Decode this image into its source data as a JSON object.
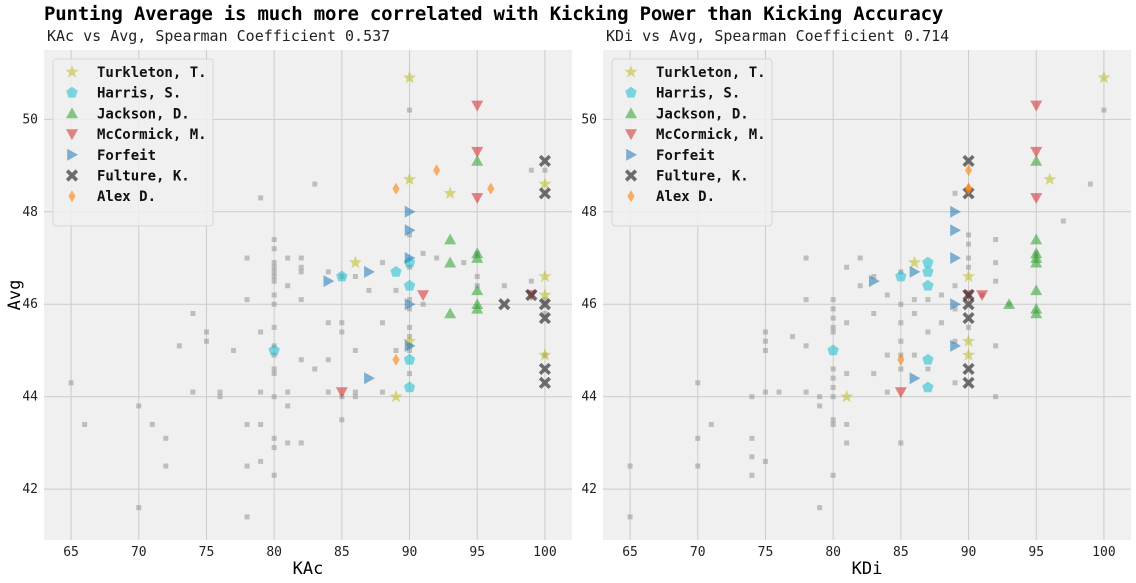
{
  "title": "Punting Average is much more correlated with Kicking Power than Kicking Accuracy",
  "chart_data": [
    {
      "type": "scatter",
      "subtitle": "KAc vs Avg, Spearman Coefficient 0.537",
      "xlabel": "KAc",
      "ylabel": "Avg",
      "xlim": [
        63,
        102
      ],
      "ylim": [
        40.9,
        51.5
      ],
      "xticks": [
        "65",
        "70",
        "75",
        "80",
        "85",
        "90",
        "95",
        "100"
      ],
      "yticks": [
        "42",
        "44",
        "46",
        "48",
        "50"
      ],
      "grid": true,
      "legend_position": "top-left",
      "background": [
        [
          65,
          44.3
        ],
        [
          66,
          43.4
        ],
        [
          70,
          43.8
        ],
        [
          70,
          41.6
        ],
        [
          71,
          43.4
        ],
        [
          72,
          43.1
        ],
        [
          72,
          42.5
        ],
        [
          73,
          45.1
        ],
        [
          74,
          44.1
        ],
        [
          74,
          45.8
        ],
        [
          75,
          45.2
        ],
        [
          75,
          45.4
        ],
        [
          76,
          44.1
        ],
        [
          76,
          44.0
        ],
        [
          77,
          45.0
        ],
        [
          78,
          41.4
        ],
        [
          78,
          42.5
        ],
        [
          78,
          43.4
        ],
        [
          78,
          46.1
        ],
        [
          78,
          47.0
        ],
        [
          79,
          48.3
        ],
        [
          79,
          45.4
        ],
        [
          79,
          44.1
        ],
        [
          79,
          43.4
        ],
        [
          79,
          42.6
        ],
        [
          80,
          47.4
        ],
        [
          80,
          47.2
        ],
        [
          80,
          46.9
        ],
        [
          80,
          46.8
        ],
        [
          80,
          46.7
        ],
        [
          80,
          46.6
        ],
        [
          80,
          46.5
        ],
        [
          80,
          46.2
        ],
        [
          80,
          46.0
        ],
        [
          80,
          45.5
        ],
        [
          80,
          45.1
        ],
        [
          80,
          44.9
        ],
        [
          80,
          44.6
        ],
        [
          80,
          44.5
        ],
        [
          80,
          44.0
        ],
        [
          80,
          43.1
        ],
        [
          80,
          42.9
        ],
        [
          80,
          42.3
        ],
        [
          81,
          47.0
        ],
        [
          81,
          46.4
        ],
        [
          81,
          44.1
        ],
        [
          81,
          43.8
        ],
        [
          81,
          43.0
        ],
        [
          82,
          46.8
        ],
        [
          82,
          46.7
        ],
        [
          82,
          47.0
        ],
        [
          82,
          46.1
        ],
        [
          82,
          44.8
        ],
        [
          82,
          43.0
        ],
        [
          83,
          48.6
        ],
        [
          83,
          44.6
        ],
        [
          84,
          46.7
        ],
        [
          84,
          45.6
        ],
        [
          84,
          44.8
        ],
        [
          84,
          44.1
        ],
        [
          85,
          46.6
        ],
        [
          85,
          45.6
        ],
        [
          85,
          45.4
        ],
        [
          85,
          44.0
        ],
        [
          85,
          43.5
        ],
        [
          86,
          46.6
        ],
        [
          86,
          45.0
        ],
        [
          86,
          44.1
        ],
        [
          86,
          44.0
        ],
        [
          87,
          46.3
        ],
        [
          88,
          46.9
        ],
        [
          88,
          45.6
        ],
        [
          88,
          44.1
        ],
        [
          89,
          46.3
        ],
        [
          89,
          45.0
        ],
        [
          90,
          50.2
        ],
        [
          90,
          47.5
        ],
        [
          90,
          46.8
        ],
        [
          90,
          46.1
        ],
        [
          90,
          45.9
        ],
        [
          90,
          45.5
        ],
        [
          90,
          45.3
        ],
        [
          90,
          45.1
        ],
        [
          90,
          45.0
        ],
        [
          90,
          44.5
        ],
        [
          91,
          47.1
        ],
        [
          91,
          46.0
        ],
        [
          92,
          47.0
        ],
        [
          94,
          46.9
        ],
        [
          95,
          47.1
        ],
        [
          95,
          46.6
        ],
        [
          95,
          46.4
        ],
        [
          97,
          46.4
        ],
        [
          99,
          48.9
        ],
        [
          99,
          46.5
        ],
        [
          100,
          48.9
        ],
        [
          100,
          46.1
        ],
        [
          100,
          45.8
        ],
        [
          100,
          44.9
        ]
      ],
      "series": [
        {
          "name": "Turkleton, T.",
          "marker": "star",
          "color": "#bcbd22",
          "points": [
            [
              90,
              50.9
            ],
            [
              90,
              48.7
            ],
            [
              86,
              46.9
            ],
            [
              93,
              48.4
            ],
            [
              90,
              45.2
            ],
            [
              89,
              44.0
            ],
            [
              100,
              48.6
            ],
            [
              100,
              46.6
            ],
            [
              100,
              46.2
            ],
            [
              100,
              44.9
            ]
          ]
        },
        {
          "name": "Harris, S.",
          "marker": "pentagon",
          "color": "#17becf",
          "points": [
            [
              90,
              46.9
            ],
            [
              89,
              46.7
            ],
            [
              85,
              46.6
            ],
            [
              90,
              46.4
            ],
            [
              80,
              45.0
            ],
            [
              90,
              44.8
            ],
            [
              90,
              44.2
            ]
          ]
        },
        {
          "name": "Jackson, D.",
          "marker": "triangle-up",
          "color": "#2ca02c",
          "points": [
            [
              95,
              49.1
            ],
            [
              93,
              47.4
            ],
            [
              95,
              47.1
            ],
            [
              95,
              47.0
            ],
            [
              93,
              46.9
            ],
            [
              95,
              46.3
            ],
            [
              95,
              46.0
            ],
            [
              95,
              45.9
            ],
            [
              93,
              45.8
            ]
          ]
        },
        {
          "name": "McCormick, M.",
          "marker": "triangle-down",
          "color": "#d62728",
          "points": [
            [
              95,
              50.3
            ],
            [
              95,
              49.3
            ],
            [
              95,
              48.3
            ],
            [
              91,
              46.2
            ],
            [
              99,
              46.2
            ],
            [
              85,
              44.1
            ]
          ]
        },
        {
          "name": "Forfeit",
          "marker": "triangle-right",
          "color": "#1f77b4",
          "points": [
            [
              90,
              48.0
            ],
            [
              90,
              47.6
            ],
            [
              90,
              47.0
            ],
            [
              87,
              46.7
            ],
            [
              84,
              46.5
            ],
            [
              90,
              46.0
            ],
            [
              90,
              45.1
            ],
            [
              87,
              44.4
            ]
          ]
        },
        {
          "name": "Fulture, K.",
          "marker": "x",
          "color": "#333333",
          "points": [
            [
              100,
              49.1
            ],
            [
              100,
              48.4
            ],
            [
              99,
              46.2
            ],
            [
              97,
              46.0
            ],
            [
              100,
              46.0
            ],
            [
              100,
              45.7
            ],
            [
              100,
              44.6
            ],
            [
              100,
              44.3
            ]
          ]
        },
        {
          "name": "Alex D.",
          "marker": "diamond",
          "color": "#ff7f0e",
          "points": [
            [
              92,
              48.9
            ],
            [
              96,
              48.5
            ],
            [
              89,
              48.5
            ],
            [
              89,
              44.8
            ]
          ]
        }
      ]
    },
    {
      "type": "scatter",
      "subtitle": "KDi vs Avg, Spearman Coefficient 0.714",
      "xlabel": "KDi",
      "ylabel": "",
      "xlim": [
        63,
        102
      ],
      "ylim": [
        40.9,
        51.5
      ],
      "xticks": [
        "65",
        "70",
        "75",
        "80",
        "85",
        "90",
        "95",
        "100"
      ],
      "yticks": [
        "42",
        "44",
        "46",
        "48",
        "50"
      ],
      "grid": true,
      "legend_position": "top-left",
      "background": [
        [
          65,
          42.5
        ],
        [
          65,
          41.4
        ],
        [
          70,
          44.3
        ],
        [
          70,
          43.1
        ],
        [
          70,
          42.5
        ],
        [
          71,
          43.4
        ],
        [
          74,
          44.0
        ],
        [
          74,
          43.1
        ],
        [
          74,
          42.7
        ],
        [
          74,
          42.3
        ],
        [
          75,
          45.4
        ],
        [
          75,
          45.2
        ],
        [
          75,
          45.0
        ],
        [
          75,
          44.1
        ],
        [
          75,
          42.6
        ],
        [
          76,
          44.1
        ],
        [
          77,
          45.3
        ],
        [
          78,
          47.0
        ],
        [
          78,
          46.1
        ],
        [
          78,
          45.1
        ],
        [
          78,
          44.1
        ],
        [
          79,
          41.6
        ],
        [
          79,
          43.8
        ],
        [
          79,
          44.0
        ],
        [
          80,
          46.1
        ],
        [
          80,
          45.9
        ],
        [
          80,
          45.7
        ],
        [
          80,
          45.5
        ],
        [
          80,
          45.4
        ],
        [
          80,
          44.6
        ],
        [
          80,
          44.4
        ],
        [
          80,
          44.2
        ],
        [
          80,
          44.0
        ],
        [
          80,
          43.5
        ],
        [
          80,
          43.4
        ],
        [
          80,
          42.3
        ],
        [
          81,
          46.8
        ],
        [
          81,
          45.6
        ],
        [
          81,
          44.5
        ],
        [
          81,
          43.4
        ],
        [
          81,
          43.0
        ],
        [
          82,
          47.0
        ],
        [
          82,
          46.4
        ],
        [
          83,
          46.6
        ],
        [
          83,
          45.8
        ],
        [
          83,
          44.5
        ],
        [
          84,
          46.2
        ],
        [
          84,
          44.9
        ],
        [
          84,
          44.1
        ],
        [
          85,
          46.7
        ],
        [
          85,
          46.0
        ],
        [
          85,
          45.6
        ],
        [
          85,
          45.2
        ],
        [
          85,
          44.9
        ],
        [
          85,
          44.6
        ],
        [
          85,
          43.0
        ],
        [
          86,
          46.1
        ],
        [
          86,
          45.8
        ],
        [
          86,
          44.9
        ],
        [
          87,
          46.1
        ],
        [
          87,
          45.4
        ],
        [
          87,
          44.6
        ],
        [
          88,
          45.6
        ],
        [
          88,
          46.2
        ],
        [
          89,
          48.4
        ],
        [
          89,
          46.4
        ],
        [
          89,
          45.9
        ],
        [
          89,
          45.2
        ],
        [
          89,
          44.3
        ],
        [
          90,
          47.5
        ],
        [
          90,
          47.3
        ],
        [
          90,
          47.0
        ],
        [
          90,
          46.8
        ],
        [
          90,
          46.2
        ],
        [
          90,
          45.5
        ],
        [
          91,
          46.2
        ],
        [
          92,
          47.4
        ],
        [
          92,
          46.9
        ],
        [
          92,
          46.5
        ],
        [
          92,
          45.1
        ],
        [
          92,
          44.0
        ],
        [
          93,
          46.0
        ],
        [
          95,
          47.1
        ],
        [
          97,
          47.8
        ],
        [
          99,
          48.6
        ],
        [
          100,
          50.2
        ]
      ],
      "series": [
        {
          "name": "Turkleton, T.",
          "marker": "star",
          "color": "#bcbd22",
          "points": [
            [
              100,
              50.9
            ],
            [
              96,
              48.7
            ],
            [
              86,
              46.9
            ],
            [
              90,
              46.6
            ],
            [
              90,
              45.2
            ],
            [
              90,
              44.9
            ],
            [
              81,
              44.0
            ]
          ]
        },
        {
          "name": "Harris, S.",
          "marker": "pentagon",
          "color": "#17becf",
          "points": [
            [
              87,
              46.9
            ],
            [
              87,
              46.7
            ],
            [
              85,
              46.6
            ],
            [
              87,
              46.4
            ],
            [
              80,
              45.0
            ],
            [
              87,
              44.8
            ],
            [
              87,
              44.2
            ]
          ]
        },
        {
          "name": "Jackson, D.",
          "marker": "triangle-up",
          "color": "#2ca02c",
          "points": [
            [
              95,
              49.1
            ],
            [
              95,
              47.4
            ],
            [
              95,
              47.1
            ],
            [
              95,
              47.0
            ],
            [
              95,
              46.9
            ],
            [
              95,
              46.3
            ],
            [
              93,
              46.0
            ],
            [
              95,
              45.9
            ],
            [
              95,
              45.8
            ]
          ]
        },
        {
          "name": "McCormick, M.",
          "marker": "triangle-down",
          "color": "#d62728",
          "points": [
            [
              95,
              50.3
            ],
            [
              95,
              49.3
            ],
            [
              95,
              48.3
            ],
            [
              91,
              46.2
            ],
            [
              90,
              46.2
            ],
            [
              85,
              44.1
            ]
          ]
        },
        {
          "name": "Forfeit",
          "marker": "triangle-right",
          "color": "#1f77b4",
          "points": [
            [
              89,
              48.0
            ],
            [
              89,
              47.6
            ],
            [
              89,
              47.0
            ],
            [
              86,
              46.7
            ],
            [
              83,
              46.5
            ],
            [
              89,
              46.0
            ],
            [
              89,
              45.1
            ],
            [
              86,
              44.4
            ]
          ]
        },
        {
          "name": "Fulture, K.",
          "marker": "x",
          "color": "#333333",
          "points": [
            [
              90,
              49.1
            ],
            [
              90,
              48.4
            ],
            [
              90,
              46.2
            ],
            [
              90,
              46.0
            ],
            [
              90,
              45.7
            ],
            [
              90,
              44.6
            ],
            [
              90,
              44.3
            ]
          ]
        },
        {
          "name": "Alex D.",
          "marker": "diamond",
          "color": "#ff7f0e",
          "points": [
            [
              90,
              48.9
            ],
            [
              90,
              48.5
            ],
            [
              90,
              48.5
            ],
            [
              85,
              44.8
            ]
          ]
        }
      ]
    }
  ]
}
